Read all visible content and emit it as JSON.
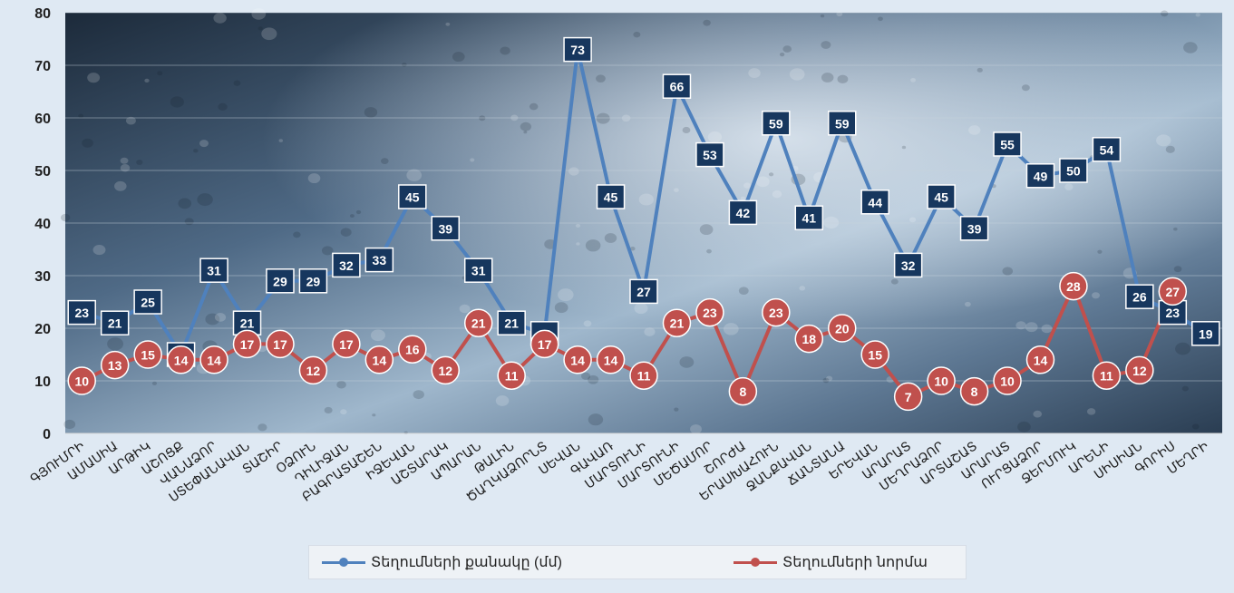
{
  "chart_data": {
    "type": "line",
    "title": "",
    "xlabel": "",
    "ylabel": "",
    "ylim": [
      0,
      80
    ],
    "yticks": [
      "0",
      "10",
      "20",
      "30",
      "40",
      "50",
      "60",
      "70",
      "80"
    ],
    "grid": true,
    "legend_position": "bottom",
    "categories": [
      "ԳՅՈՒՄՐԻ",
      "ԱՄԱՍԻԱ",
      "ԱՐԹԻԿ",
      "ԱՇՈՑՔ",
      "ՎԱՆԱՁՈՐ",
      "ՍՏԵՓԱՆԱՎԱՆ",
      "ՏԱՇԻՐ",
      "ՕՁՈՒՆ",
      "ԴԻԼԻՋԱՆ",
      "ԲԱԳՐԱՏԱՇԵՆ",
      "ԻՋԵՎԱՆ",
      "ԱՇՏԱՐԱԿ",
      "ԱՊԱՐԱՆ",
      "ԹԱԼԻՆ",
      "ԾԱՂԿԱՁՈՐՆՏ",
      "ՍԵՎԱՆ",
      "ԳԱՎԱՌ",
      "ՄԱՐՏՈՒՆԻ",
      "ՄԱՐՏՈՒՆԻ",
      "ՄԵԾԱՄՈՐ",
      "ՇՈՐԺԱ",
      "ԵՐԱՍԽԱՀՈՒՆ",
      "ՋԱՆՔԱՎԱՆ",
      "ՃԱՆՏԱՆԱ",
      "ԵՐԵՎԱՆ",
      "ԱՐԱՐԱՏ",
      "ՄԵՂՐԱՁՈՐ",
      "ԱՐՏԱՇԱՏ",
      "ԱՐԱՐԱՏ",
      "ՈՒՐՑԱՁՈՐ",
      "ՋԵՐՄՈՒԿ",
      "ԱՐԵՆԻ",
      "ՍԻՍԻԱՆ",
      "ԳՈՐԻՍ",
      "ՄԵՂՐԻ"
    ],
    "categories_display": [
      "ԳՅՈՒՄՐԻ",
      "ԱՄԱՍԻԱ",
      "ԱՐԹԻԿ",
      "ԱՇՈՑՔ",
      "ՎԱՆԱՁՈՐ",
      "ՍՏԵՓԱՆԱՎԱՆ",
      "ՏԱՇԻՐ",
      "ՕՁՈՒՆ",
      "ԴԻԼԻՋԱՆ",
      "ԲԱԳՐԱՏԱՇԵՆ",
      "ԻՋԵՎԱՆ",
      "ԱՇՏԱՐԱԿ",
      "ԱՊԱՐԱՆ",
      "ԹԱԼԻՆ",
      "ԾԱՂԿԱՁՈՐՆՏ",
      "ՍԵՎԱՆ",
      "ԳԱՎԱՌ",
      "ՄԱՐՏՈՒՆԻ",
      "ՄԱՐՏՈՒՆԻ",
      "ՄԵԾԱՄՈՐ",
      "ՇՈՐԺԱ",
      "ԵՐԱՍԽԱՀՈՒՆ",
      "ՋԱՆՔԱՎԱՆ",
      "ՃԱՆՏԱՆԱ",
      "ԵՐԵՎԱՆ",
      "ԱՐԱՐԱՏ",
      "ՄԵՂՐԱՁՈՐ",
      "ԱՐՏԱՇԱՏ",
      "ԱՐԱՐԱՏ",
      "ՈՒՐՑԱՁՈՐ",
      "ՋԵՐՄՈՒԿ",
      "ԱՐԵՆԻ",
      "ՍԻՍԻԱՆ",
      "ԳՈՐԻՍ",
      "ՄԵՂՐԻ"
    ],
    "series": [
      {
        "name": "Տեղումների քանակը (մմ)",
        "color": "#4f81bd",
        "label_bg": "#17375e",
        "values": [
          23,
          21,
          25,
          15,
          31,
          21,
          29,
          29,
          32,
          33,
          45,
          39,
          31,
          21,
          19,
          73,
          45,
          27,
          66,
          53,
          42,
          59,
          41,
          59,
          44,
          32,
          45,
          39,
          55,
          49,
          50,
          54,
          26,
          23,
          19
        ]
      },
      {
        "name": "Տեղումների նորմա",
        "color": "#c0504d",
        "label_bg": "#c0504d",
        "values": [
          10,
          13,
          15,
          14,
          14,
          17,
          17,
          12,
          17,
          14,
          16,
          12,
          21,
          11,
          17,
          14,
          14,
          11,
          21,
          23,
          8,
          23,
          18,
          20,
          15,
          7,
          10,
          8,
          10,
          14,
          28,
          11,
          12,
          27,
          null
        ]
      }
    ]
  }
}
